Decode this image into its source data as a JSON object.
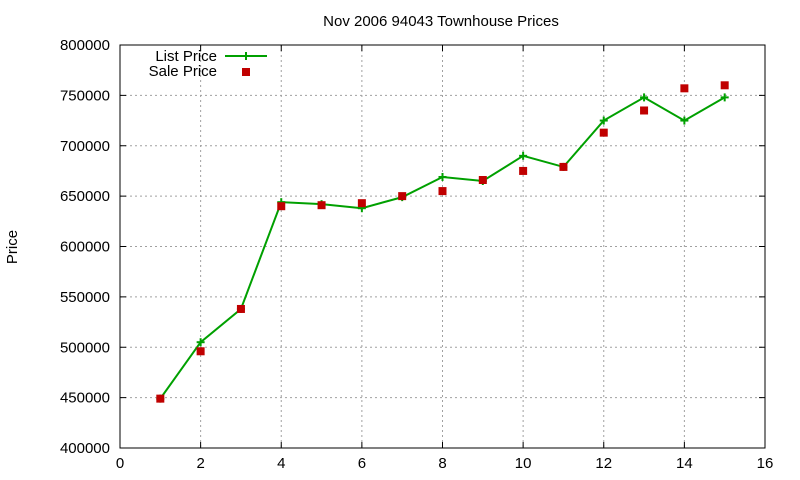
{
  "chart_data": {
    "type": "line",
    "title": "Nov 2006 94043 Townhouse Prices",
    "xlabel": "",
    "ylabel": "Price",
    "xlim": [
      0,
      16
    ],
    "ylim": [
      400000,
      800000
    ],
    "xticks": [
      0,
      2,
      4,
      6,
      8,
      10,
      12,
      14,
      16
    ],
    "yticks": [
      400000,
      450000,
      500000,
      550000,
      600000,
      650000,
      700000,
      750000,
      800000
    ],
    "grid": true,
    "legend_position": "top-left",
    "series": [
      {
        "name": "List Price",
        "style": "line-with-plus-markers",
        "color": "#00a000",
        "x": [
          1,
          2,
          3,
          4,
          5,
          6,
          7,
          8,
          9,
          10,
          11,
          12,
          13,
          14,
          15
        ],
        "y": [
          449000,
          505000,
          538000,
          644000,
          642000,
          638000,
          649000,
          669000,
          665000,
          690000,
          679000,
          725000,
          748000,
          725000,
          748000
        ]
      },
      {
        "name": "Sale Price",
        "style": "square-markers",
        "color": "#c00000",
        "x": [
          1,
          2,
          3,
          4,
          5,
          6,
          7,
          8,
          9,
          10,
          11,
          12,
          13,
          14,
          15
        ],
        "y": [
          449000,
          496000,
          538000,
          640000,
          641000,
          643000,
          650000,
          655000,
          666000,
          675000,
          679000,
          713000,
          735000,
          757000,
          760000
        ]
      }
    ]
  }
}
